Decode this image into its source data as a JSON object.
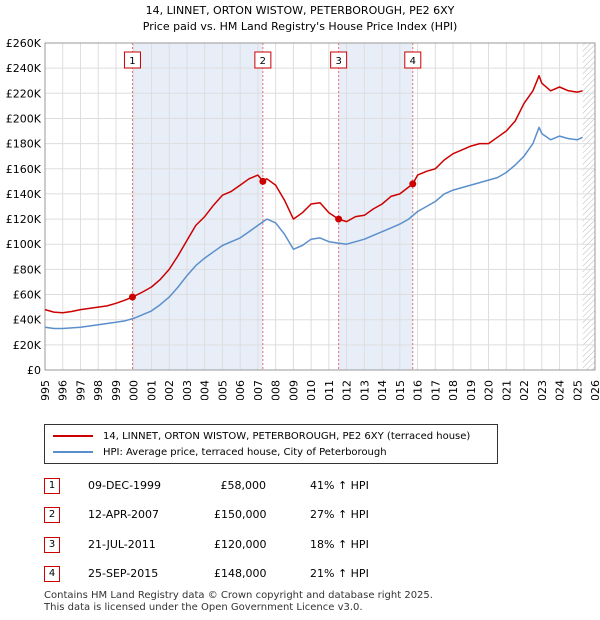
{
  "chart_data": {
    "type": "line",
    "title": "14, LINNET, ORTON WISTOW, PETERBOROUGH, PE2 6XY",
    "subtitle": "Price paid vs. HM Land Registry's House Price Index (HPI)",
    "xlabel": "",
    "ylabel": "",
    "xlim": [
      1995,
      2026
    ],
    "ylim": [
      0,
      260000
    ],
    "x_ticks": [
      "1995",
      "1996",
      "1997",
      "1998",
      "1999",
      "2000",
      "2001",
      "2002",
      "2003",
      "2004",
      "2005",
      "2006",
      "2007",
      "2008",
      "2009",
      "2010",
      "2011",
      "2012",
      "2013",
      "2014",
      "2015",
      "2016",
      "2017",
      "2018",
      "2019",
      "2020",
      "2021",
      "2022",
      "2023",
      "2024",
      "2025",
      "2026"
    ],
    "y_ticks": [
      "£0",
      "£20K",
      "£40K",
      "£60K",
      "£80K",
      "£100K",
      "£120K",
      "£140K",
      "£160K",
      "£180K",
      "£200K",
      "£220K",
      "£240K",
      "£260K"
    ],
    "y_tick_values": [
      0,
      20000,
      40000,
      60000,
      80000,
      100000,
      120000,
      140000,
      160000,
      180000,
      200000,
      220000,
      240000,
      260000
    ],
    "series": [
      {
        "name": "14, LINNET, ORTON WISTOW, PETERBOROUGH, PE2 6XY (terraced house)",
        "color": "#cc0000",
        "x": [
          1995.0,
          1995.5,
          1996.0,
          1996.5,
          1997.0,
          1997.5,
          1998.0,
          1998.5,
          1999.0,
          1999.5,
          1999.93,
          2000.5,
          2001.0,
          2001.5,
          2002.0,
          2002.5,
          2003.0,
          2003.5,
          2004.0,
          2004.5,
          2005.0,
          2005.5,
          2006.0,
          2006.5,
          2007.0,
          2007.28,
          2007.5,
          2008.0,
          2008.5,
          2009.0,
          2009.5,
          2010.0,
          2010.5,
          2011.0,
          2011.55,
          2012.0,
          2012.5,
          2013.0,
          2013.5,
          2014.0,
          2014.5,
          2015.0,
          2015.73,
          2016.0,
          2016.5,
          2017.0,
          2017.5,
          2018.0,
          2018.5,
          2019.0,
          2019.5,
          2020.0,
          2020.5,
          2021.0,
          2021.5,
          2022.0,
          2022.5,
          2022.85,
          2023.0,
          2023.5,
          2024.0,
          2024.5,
          2025.0,
          2025.3
        ],
        "values": [
          48000,
          46000,
          45500,
          46500,
          48000,
          49000,
          50000,
          51000,
          53000,
          55500,
          58000,
          62000,
          66000,
          72000,
          80000,
          91000,
          103000,
          115000,
          122000,
          131000,
          139000,
          142000,
          147000,
          152000,
          155000,
          150000,
          152000,
          147000,
          135000,
          120000,
          125000,
          132000,
          133000,
          125000,
          120000,
          118000,
          122000,
          123000,
          128000,
          132000,
          138000,
          140000,
          148000,
          155000,
          158000,
          160000,
          167000,
          172000,
          175000,
          178000,
          180000,
          180000,
          185000,
          190000,
          198000,
          212000,
          222000,
          234000,
          228000,
          222000,
          225000,
          222000,
          221000,
          222000
        ]
      },
      {
        "name": "HPI: Average price, terraced house, City of Peterborough",
        "color": "#5b8fcc",
        "x": [
          1995.0,
          1995.5,
          1996.0,
          1996.5,
          1997.0,
          1997.5,
          1998.0,
          1998.5,
          1999.0,
          1999.5,
          2000.0,
          2000.5,
          2001.0,
          2001.5,
          2002.0,
          2002.5,
          2003.0,
          2003.5,
          2004.0,
          2004.5,
          2005.0,
          2005.5,
          2006.0,
          2006.5,
          2007.0,
          2007.5,
          2008.0,
          2008.5,
          2009.0,
          2009.5,
          2010.0,
          2010.5,
          2011.0,
          2011.5,
          2012.0,
          2012.5,
          2013.0,
          2013.5,
          2014.0,
          2014.5,
          2015.0,
          2015.5,
          2016.0,
          2016.5,
          2017.0,
          2017.5,
          2018.0,
          2018.5,
          2019.0,
          2019.5,
          2020.0,
          2020.5,
          2021.0,
          2021.5,
          2022.0,
          2022.5,
          2022.85,
          2023.0,
          2023.5,
          2024.0,
          2024.5,
          2025.0,
          2025.3
        ],
        "values": [
          34000,
          33000,
          33000,
          33500,
          34000,
          35000,
          36000,
          37000,
          38000,
          39000,
          41000,
          44000,
          47000,
          52000,
          58000,
          66000,
          75000,
          83000,
          89000,
          94000,
          99000,
          102000,
          105000,
          110000,
          115000,
          120000,
          117000,
          108000,
          96000,
          99000,
          104000,
          105000,
          102000,
          101000,
          100000,
          102000,
          104000,
          107000,
          110000,
          113000,
          116000,
          120000,
          126000,
          130000,
          134000,
          140000,
          143000,
          145000,
          147000,
          149000,
          151000,
          153000,
          157000,
          163000,
          170000,
          180000,
          193000,
          188000,
          183000,
          186000,
          184000,
          183000,
          185000
        ]
      }
    ],
    "markers": [
      {
        "label": "1",
        "x": 1999.93,
        "value": 58000
      },
      {
        "label": "2",
        "x": 2007.28,
        "value": 150000
      },
      {
        "label": "3",
        "x": 2011.55,
        "value": 120000
      },
      {
        "label": "4",
        "x": 2015.73,
        "value": 148000
      }
    ],
    "shaded_spans": [
      [
        1999.93,
        2007.28
      ],
      [
        2011.55,
        2015.73
      ]
    ],
    "hatched_from": 2025.3
  },
  "legend": {
    "property_label": "14, LINNET, ORTON WISTOW, PETERBOROUGH, PE2 6XY (terraced house)",
    "hpi_label": "HPI: Average price, terraced house, City of Peterborough"
  },
  "transactions": [
    {
      "num": "1",
      "date": "09-DEC-1999",
      "price": "£58,000",
      "hpi": "41% ↑ HPI"
    },
    {
      "num": "2",
      "date": "12-APR-2007",
      "price": "£150,000",
      "hpi": "27% ↑ HPI"
    },
    {
      "num": "3",
      "date": "21-JUL-2011",
      "price": "£120,000",
      "hpi": "18% ↑ HPI"
    },
    {
      "num": "4",
      "date": "25-SEP-2015",
      "price": "£148,000",
      "hpi": "21% ↑ HPI"
    }
  ],
  "footer": {
    "line1": "Contains HM Land Registry data © Crown copyright and database right 2025.",
    "line2": "This data is licensed under the Open Government Licence v3.0."
  }
}
